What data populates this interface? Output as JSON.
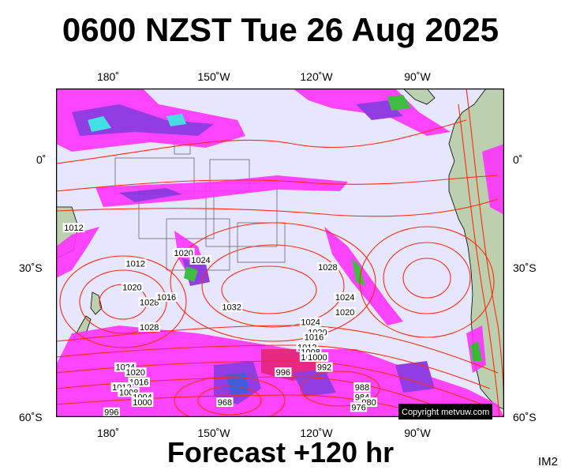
{
  "title": "0600 NZST Tue 26 Aug 2025",
  "footer": "Forecast +120 hr",
  "id_label": "IM2",
  "copyright": "Copyright metvuw.com",
  "lon_labels": [
    "180˚",
    "150˚W",
    "120˚W",
    "90˚W"
  ],
  "lat_labels": [
    "0˚",
    "30˚S",
    "60˚S"
  ],
  "colors": {
    "ocean": "#e6e6ff",
    "land": "#bcd0b0",
    "isobar": "#ff2a10",
    "rain_magenta": "#ff33ff",
    "rain_purple": "#8a2be2",
    "rain_blue": "#2f4fd8",
    "rain_cyan": "#33e0e0",
    "rain_green": "#2eb82e"
  },
  "isobar_labels": [
    {
      "text": "1012",
      "lon": 112,
      "lat": -10
    },
    {
      "text": "1012",
      "lon": 112,
      "lat": -15
    },
    {
      "text": "1012",
      "lon": 120,
      "lat": -26
    },
    {
      "text": "1016",
      "lon": 143,
      "lat": -7
    },
    {
      "text": "1012",
      "lon": 170,
      "lat": -19
    },
    {
      "text": "1016",
      "lon": 150,
      "lat": -17
    },
    {
      "text": "1016",
      "lon": 129,
      "lat": 0
    },
    {
      "text": "1020",
      "lon": 108,
      "lat": -21
    },
    {
      "text": "1024",
      "lon": 92,
      "lat": -28
    },
    {
      "text": "1028",
      "lon": 91,
      "lat": -32
    },
    {
      "text": "1016",
      "lon": 103,
      "lat": -17
    },
    {
      "text": "1016",
      "lon": 101,
      "lat": -18
    },
    {
      "text": "1012",
      "lon": -172,
      "lat": -29
    },
    {
      "text": "1020",
      "lon": -173,
      "lat": -34
    },
    {
      "text": "1028",
      "lon": -168,
      "lat": -37
    },
    {
      "text": "1016",
      "lon": -163,
      "lat": -36
    },
    {
      "text": "1020",
      "lon": -158,
      "lat": -26
    },
    {
      "text": "1024",
      "lon": -153,
      "lat": -28
    },
    {
      "text": "1032",
      "lon": -144,
      "lat": -38
    },
    {
      "text": "1028",
      "lon": -116,
      "lat": -30
    },
    {
      "text": "1024",
      "lon": -111,
      "lat": -36
    },
    {
      "text": "1020",
      "lon": -111,
      "lat": -39
    },
    {
      "text": "1024",
      "lon": -121,
      "lat": -41
    },
    {
      "text": "1020",
      "lon": -119,
      "lat": -43
    },
    {
      "text": "1016",
      "lon": -120,
      "lat": -44
    },
    {
      "text": "1012",
      "lon": -122,
      "lat": -46
    },
    {
      "text": "1008",
      "lon": -121,
      "lat": -47
    },
    {
      "text": "1004",
      "lon": -121,
      "lat": -48
    },
    {
      "text": "1000",
      "lon": -119,
      "lat": -48
    },
    {
      "text": "996",
      "lon": -129,
      "lat": -51
    },
    {
      "text": "992",
      "lon": -117,
      "lat": -50
    },
    {
      "text": "1028",
      "lon": -168,
      "lat": -42
    },
    {
      "text": "1024",
      "lon": -175,
      "lat": -50
    },
    {
      "text": "1020",
      "lon": -172,
      "lat": -51
    },
    {
      "text": "1016",
      "lon": -171,
      "lat": -53
    },
    {
      "text": "1012",
      "lon": -176,
      "lat": -54
    },
    {
      "text": "1008",
      "lon": -174,
      "lat": -55
    },
    {
      "text": "1004",
      "lon": -170,
      "lat": -56
    },
    {
      "text": "1000",
      "lon": -170,
      "lat": -57
    },
    {
      "text": "996",
      "lon": -179,
      "lat": -59
    },
    {
      "text": "968",
      "lon": -146,
      "lat": -57
    },
    {
      "text": "988",
      "lon": -106,
      "lat": -54
    },
    {
      "text": "984",
      "lon": -106,
      "lat": -56
    },
    {
      "text": "980",
      "lon": -104,
      "lat": -57
    },
    {
      "text": "976",
      "lon": -107,
      "lat": -58
    }
  ]
}
